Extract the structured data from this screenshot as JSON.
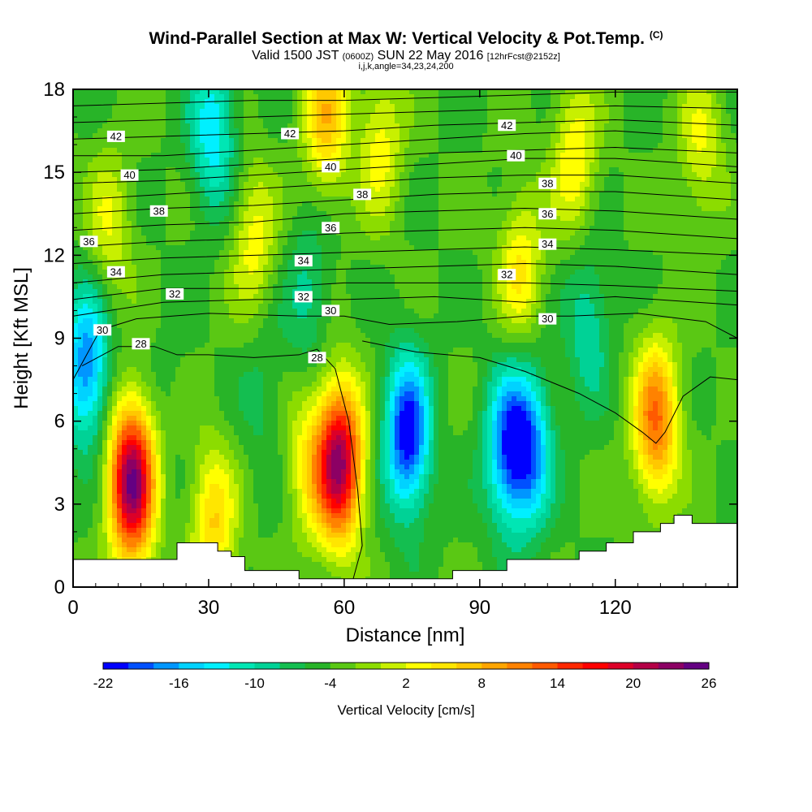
{
  "header": {
    "title": "Wind-Parallel Section at Max W: Vertical Velocity & Pot.Temp.",
    "copyright_mark": "(C)",
    "subtitle_valid": "Valid 1500 JST",
    "subtitle_utc": "(0600Z)",
    "subtitle_date": "SUN 22 May 2016",
    "subtitle_fcst": "[12hrFcst@2152z]",
    "params": "i,j,k,angle=34,23,24,200"
  },
  "chart_data": {
    "type": "heatmap",
    "title": "Wind-Parallel Section at Max W: Vertical Velocity & Pot.Temp.",
    "xlabel": "Distance [nm]",
    "ylabel": "Height [Kft MSL]",
    "xlim": [
      0,
      147
    ],
    "ylim": [
      0,
      18
    ],
    "xticks": [
      0,
      30,
      60,
      90,
      120
    ],
    "yticks": [
      0,
      3,
      6,
      9,
      12,
      15,
      18
    ],
    "colorbar": {
      "label": "Vertical Velocity [cm/s]",
      "tick_labels": [
        "-22",
        "-16",
        "-10",
        "-4",
        "2",
        "8",
        "14",
        "20",
        "26"
      ],
      "colors": [
        "#0000ff",
        "#0050ff",
        "#0096ff",
        "#00d2ff",
        "#00f0ff",
        "#00e6b4",
        "#00d296",
        "#14be50",
        "#28b428",
        "#5ac814",
        "#8cdc00",
        "#c8f000",
        "#ffff00",
        "#ffe600",
        "#ffc800",
        "#ffa500",
        "#ff8200",
        "#ff5a00",
        "#ff2800",
        "#ff0000",
        "#dc0028",
        "#b40046",
        "#8c0064",
        "#640082"
      ]
    },
    "w_centers": [
      {
        "x": 13,
        "y": 3.8,
        "w": 24
      },
      {
        "x": 59,
        "y": 4.5,
        "w": 22
      },
      {
        "x": 129,
        "y": 6.0,
        "w": 12
      },
      {
        "x": 52,
        "y": 4.5,
        "w": 3
      },
      {
        "x": 31,
        "y": 2.3,
        "w": 6
      },
      {
        "x": 74,
        "y": 5.5,
        "w": -22
      },
      {
        "x": 96,
        "y": 5.0,
        "w": -17
      },
      {
        "x": 101,
        "y": 5.0,
        "w": -17
      },
      {
        "x": 3,
        "y": 8.0,
        "w": -18
      },
      {
        "x": 31,
        "y": 16.5,
        "w": -14
      },
      {
        "x": 52,
        "y": 10.5,
        "w": -9
      },
      {
        "x": 114,
        "y": 9.5,
        "w": -10
      },
      {
        "x": 21,
        "y": 7.5,
        "w": -5
      },
      {
        "x": 42,
        "y": 7.0,
        "w": -7
      },
      {
        "x": 84,
        "y": 6.0,
        "w": -4
      },
      {
        "x": 56,
        "y": 17.0,
        "w": 7
      },
      {
        "x": 68,
        "y": 16.0,
        "w": 3
      },
      {
        "x": 111,
        "y": 15.5,
        "w": 4
      },
      {
        "x": 99,
        "y": 11.5,
        "w": 4
      },
      {
        "x": 40,
        "y": 12.5,
        "w": 3
      },
      {
        "x": 8,
        "y": 13.0,
        "w": 2
      },
      {
        "x": 139,
        "y": 16.0,
        "w": 2
      }
    ],
    "terrain": [
      [
        0,
        1
      ],
      [
        23,
        1
      ],
      [
        23,
        1.6
      ],
      [
        32,
        1.6
      ],
      [
        32,
        1.3
      ],
      [
        35,
        1.3
      ],
      [
        35,
        1.1
      ],
      [
        38,
        1.1
      ],
      [
        38,
        0.6
      ],
      [
        50,
        0.6
      ],
      [
        50,
        0.3
      ],
      [
        62,
        0.3
      ],
      [
        62,
        0.3
      ],
      [
        64,
        0.3
      ],
      [
        64,
        0.3
      ],
      [
        84,
        0.3
      ],
      [
        84,
        0.6
      ],
      [
        96,
        0.6
      ],
      [
        96,
        1
      ],
      [
        112,
        1
      ],
      [
        112,
        1.3
      ],
      [
        118,
        1.3
      ],
      [
        118,
        1.6
      ],
      [
        124,
        1.6
      ],
      [
        124,
        2
      ],
      [
        130,
        2
      ],
      [
        130,
        2.3
      ],
      [
        133,
        2.3
      ],
      [
        133,
        2.6
      ],
      [
        137,
        2.6
      ],
      [
        137,
        2.3
      ],
      [
        147,
        2.3
      ]
    ],
    "isentropes": [
      {
        "theta": 28,
        "points": [
          [
            2,
            8.0
          ],
          [
            10,
            8.7
          ],
          [
            18,
            8.7
          ],
          [
            23,
            8.4
          ],
          [
            30,
            8.4
          ],
          [
            40,
            8.3
          ],
          [
            50,
            8.4
          ],
          [
            54,
            8.6
          ],
          [
            58,
            7.9
          ],
          [
            61,
            6.0
          ],
          [
            63,
            3.5
          ],
          [
            64,
            1.5
          ],
          [
            62,
            0.3
          ]
        ]
      },
      {
        "theta": 28,
        "points": [
          [
            64,
            8.9
          ],
          [
            76,
            8.5
          ],
          [
            90,
            8.3
          ],
          [
            100,
            7.8
          ],
          [
            112,
            7.0
          ],
          [
            120,
            6.3
          ],
          [
            126,
            5.6
          ],
          [
            129,
            5.2
          ],
          [
            131,
            5.6
          ],
          [
            135,
            6.9
          ],
          [
            141,
            7.6
          ],
          [
            147,
            7.5
          ]
        ]
      },
      {
        "theta": 30,
        "points": [
          [
            0,
            7.5
          ],
          [
            6,
            9.3
          ],
          [
            14,
            9.7
          ],
          [
            30,
            9.9
          ],
          [
            50,
            9.8
          ],
          [
            60,
            9.8
          ],
          [
            70,
            9.5
          ],
          [
            85,
            9.6
          ],
          [
            100,
            9.8
          ],
          [
            110,
            9.8
          ],
          [
            125,
            9.9
          ],
          [
            140,
            9.6
          ],
          [
            147,
            9.0
          ]
        ]
      },
      {
        "theta": 31,
        "points": [
          [
            0,
            9.8
          ],
          [
            20,
            10.3
          ],
          [
            40,
            10.4
          ],
          [
            60,
            10.4
          ],
          [
            80,
            10.5
          ],
          [
            100,
            10.3
          ],
          [
            120,
            10.5
          ],
          [
            147,
            10.2
          ]
        ]
      },
      {
        "theta": 32,
        "points": [
          [
            0,
            10.4
          ],
          [
            20,
            10.8
          ],
          [
            40,
            10.8
          ],
          [
            60,
            11.0
          ],
          [
            80,
            11.0
          ],
          [
            100,
            11.0
          ],
          [
            120,
            10.9
          ],
          [
            147,
            10.7
          ]
        ]
      },
      {
        "theta": 33,
        "points": [
          [
            0,
            11.0
          ],
          [
            20,
            11.3
          ],
          [
            40,
            11.4
          ],
          [
            60,
            11.5
          ],
          [
            80,
            11.6
          ],
          [
            100,
            11.7
          ],
          [
            120,
            11.6
          ],
          [
            147,
            11.3
          ]
        ]
      },
      {
        "theta": 34,
        "points": [
          [
            0,
            11.7
          ],
          [
            20,
            11.9
          ],
          [
            40,
            12.0
          ],
          [
            60,
            12.1
          ],
          [
            80,
            12.2
          ],
          [
            100,
            12.3
          ],
          [
            120,
            12.2
          ],
          [
            147,
            12.0
          ]
        ]
      },
      {
        "theta": 35,
        "points": [
          [
            0,
            12.3
          ],
          [
            20,
            12.5
          ],
          [
            40,
            12.6
          ],
          [
            60,
            12.8
          ],
          [
            80,
            12.9
          ],
          [
            100,
            13.0
          ],
          [
            120,
            12.9
          ],
          [
            147,
            12.6
          ]
        ]
      },
      {
        "theta": 36,
        "points": [
          [
            0,
            12.9
          ],
          [
            20,
            13.1
          ],
          [
            40,
            13.2
          ],
          [
            60,
            13.5
          ],
          [
            80,
            13.6
          ],
          [
            100,
            13.7
          ],
          [
            120,
            13.6
          ],
          [
            147,
            13.3
          ]
        ]
      },
      {
        "theta": 37,
        "points": [
          [
            0,
            13.5
          ],
          [
            20,
            13.7
          ],
          [
            40,
            13.8
          ],
          [
            60,
            14.0
          ],
          [
            80,
            14.2
          ],
          [
            100,
            14.3
          ],
          [
            120,
            14.3
          ],
          [
            147,
            14.0
          ]
        ]
      },
      {
        "theta": 38,
        "points": [
          [
            0,
            14.0
          ],
          [
            20,
            14.2
          ],
          [
            40,
            14.4
          ],
          [
            60,
            14.6
          ],
          [
            80,
            14.8
          ],
          [
            100,
            14.9
          ],
          [
            120,
            14.9
          ],
          [
            147,
            14.6
          ]
        ]
      },
      {
        "theta": 39,
        "points": [
          [
            0,
            14.6
          ],
          [
            20,
            14.7
          ],
          [
            40,
            14.9
          ],
          [
            60,
            15.1
          ],
          [
            80,
            15.3
          ],
          [
            100,
            15.5
          ],
          [
            120,
            15.5
          ],
          [
            147,
            15.2
          ]
        ]
      },
      {
        "theta": 40,
        "points": [
          [
            0,
            15.0
          ],
          [
            20,
            15.1
          ],
          [
            40,
            15.3
          ],
          [
            60,
            15.5
          ],
          [
            80,
            15.7
          ],
          [
            100,
            15.8
          ],
          [
            120,
            15.9
          ],
          [
            147,
            15.7
          ]
        ]
      },
      {
        "theta": 41,
        "points": [
          [
            0,
            15.6
          ],
          [
            20,
            15.6
          ],
          [
            40,
            15.8
          ],
          [
            60,
            16.0
          ],
          [
            80,
            16.2
          ],
          [
            100,
            16.4
          ],
          [
            120,
            16.5
          ],
          [
            147,
            16.2
          ]
        ]
      },
      {
        "theta": 42,
        "points": [
          [
            0,
            16.2
          ],
          [
            20,
            16.3
          ],
          [
            40,
            16.4
          ],
          [
            60,
            16.5
          ],
          [
            80,
            16.7
          ],
          [
            100,
            16.8
          ],
          [
            120,
            16.9
          ],
          [
            147,
            16.7
          ]
        ]
      },
      {
        "theta": 43,
        "points": [
          [
            0,
            16.8
          ],
          [
            20,
            16.9
          ],
          [
            40,
            17.0
          ],
          [
            60,
            17.1
          ],
          [
            80,
            17.2
          ],
          [
            100,
            17.3
          ],
          [
            120,
            17.4
          ],
          [
            147,
            17.3
          ]
        ]
      },
      {
        "theta": 44,
        "points": [
          [
            0,
            17.4
          ],
          [
            20,
            17.5
          ],
          [
            40,
            17.6
          ],
          [
            60,
            17.6
          ],
          [
            80,
            17.7
          ],
          [
            100,
            17.8
          ],
          [
            120,
            17.9
          ],
          [
            147,
            17.9
          ]
        ]
      }
    ],
    "contour_labels": [
      {
        "text": "42",
        "x": 9.5,
        "y": 16.3
      },
      {
        "text": "42",
        "x": 48,
        "y": 16.4
      },
      {
        "text": "42",
        "x": 96,
        "y": 16.7
      },
      {
        "text": "40",
        "x": 12.5,
        "y": 14.9
      },
      {
        "text": "40",
        "x": 57,
        "y": 15.2
      },
      {
        "text": "40",
        "x": 98,
        "y": 15.6
      },
      {
        "text": "38",
        "x": 19,
        "y": 13.6
      },
      {
        "text": "38",
        "x": 64,
        "y": 14.2
      },
      {
        "text": "38",
        "x": 105,
        "y": 14.6
      },
      {
        "text": "36",
        "x": 3.5,
        "y": 12.5
      },
      {
        "text": "36",
        "x": 57,
        "y": 13.0
      },
      {
        "text": "36",
        "x": 105,
        "y": 13.5
      },
      {
        "text": "34",
        "x": 9.5,
        "y": 11.4
      },
      {
        "text": "34",
        "x": 51,
        "y": 11.8
      },
      {
        "text": "34",
        "x": 105,
        "y": 12.4
      },
      {
        "text": "32",
        "x": 22.5,
        "y": 10.6
      },
      {
        "text": "32",
        "x": 51,
        "y": 10.5
      },
      {
        "text": "32",
        "x": 96,
        "y": 11.3
      },
      {
        "text": "30",
        "x": 6.5,
        "y": 9.3
      },
      {
        "text": "30",
        "x": 57,
        "y": 10.0
      },
      {
        "text": "30",
        "x": 105,
        "y": 9.7
      },
      {
        "text": "28",
        "x": 15,
        "y": 8.8
      },
      {
        "text": "28",
        "x": 54,
        "y": 8.3
      }
    ]
  }
}
